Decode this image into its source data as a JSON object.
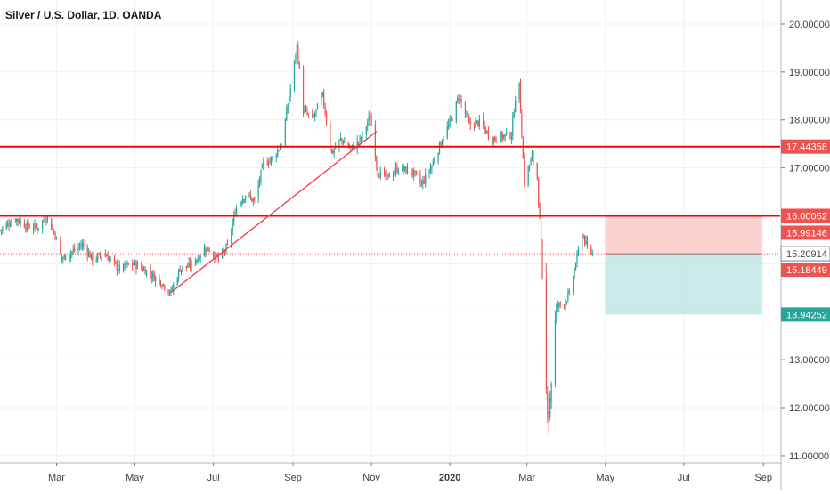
{
  "header": {
    "title": "Silver / U.S. Dollar, 1D, OANDA"
  },
  "colors": {
    "up": "#26a69a",
    "down": "#ef5350",
    "level_line": "#ff0000",
    "trendline": "#f23645",
    "grid": "#eef1f5",
    "axis_text": "#3b3f47",
    "stop_zone": "#f8c9c7",
    "target_zone": "#bfe6e3",
    "label_red": "#ef5350",
    "label_green": "#26a69a",
    "label_current": "#434651"
  },
  "chart_data": {
    "type": "candlestick",
    "title": "Silver / U.S. Dollar, 1D, OANDA",
    "xlabel": "",
    "ylabel": "",
    "x_range": [
      "2019-01-16",
      "2020-09-14"
    ],
    "ylim": [
      10.85,
      20.5
    ],
    "grid": true,
    "x_ticks": [
      {
        "date": "2019-03-01",
        "label": "Mar",
        "bold": false
      },
      {
        "date": "2019-05-01",
        "label": "May",
        "bold": false
      },
      {
        "date": "2019-07-01",
        "label": "Jul",
        "bold": false
      },
      {
        "date": "2019-09-01",
        "label": "Sep",
        "bold": false
      },
      {
        "date": "2019-11-01",
        "label": "Nov",
        "bold": false
      },
      {
        "date": "2020-01-01",
        "label": "2020",
        "bold": true
      },
      {
        "date": "2020-03-01",
        "label": "Mar",
        "bold": false
      },
      {
        "date": "2020-05-01",
        "label": "May",
        "bold": false
      },
      {
        "date": "2020-07-01",
        "label": "Jul",
        "bold": false
      },
      {
        "date": "2020-09-01",
        "label": "Sep",
        "bold": false
      }
    ],
    "y_ticks": [
      {
        "value": 20,
        "label": "20.00000"
      },
      {
        "value": 19,
        "label": "19.00000"
      },
      {
        "value": 18,
        "label": "18.00000"
      },
      {
        "value": 17,
        "label": "17.00000"
      },
      {
        "value": 13,
        "label": "13.00000"
      },
      {
        "value": 12,
        "label": "12.00000"
      },
      {
        "value": 11,
        "label": "11.00000"
      }
    ],
    "close_path": [
      [
        "2019-01-16",
        15.7
      ],
      [
        "2019-01-28",
        15.95
      ],
      [
        "2019-02-05",
        15.8
      ],
      [
        "2019-02-14",
        15.75
      ],
      [
        "2019-02-21",
        16.0
      ],
      [
        "2019-02-28",
        15.6
      ],
      [
        "2019-03-05",
        15.1
      ],
      [
        "2019-03-13",
        15.25
      ],
      [
        "2019-03-21",
        15.4
      ],
      [
        "2019-03-29",
        15.1
      ],
      [
        "2019-04-08",
        15.2
      ],
      [
        "2019-04-18",
        14.9
      ],
      [
        "2019-04-30",
        15.0
      ],
      [
        "2019-05-10",
        14.85
      ],
      [
        "2019-05-22",
        14.6
      ],
      [
        "2019-05-29",
        14.4
      ],
      [
        "2019-06-05",
        14.9
      ],
      [
        "2019-06-13",
        14.95
      ],
      [
        "2019-06-24",
        15.3
      ],
      [
        "2019-06-28",
        15.3
      ],
      [
        "2019-07-05",
        15.1
      ],
      [
        "2019-07-12",
        15.35
      ],
      [
        "2019-07-19",
        16.2
      ],
      [
        "2019-07-26",
        16.45
      ],
      [
        "2019-08-02",
        16.3
      ],
      [
        "2019-08-09",
        17.1
      ],
      [
        "2019-08-16",
        17.2
      ],
      [
        "2019-08-23",
        17.5
      ],
      [
        "2019-08-28",
        18.3
      ],
      [
        "2019-09-04",
        19.55
      ],
      [
        "2019-09-09",
        18.2
      ],
      [
        "2019-09-16",
        18.0
      ],
      [
        "2019-09-24",
        18.5
      ],
      [
        "2019-10-01",
        17.3
      ],
      [
        "2019-10-08",
        17.6
      ],
      [
        "2019-10-16",
        17.4
      ],
      [
        "2019-10-24",
        17.6
      ],
      [
        "2019-10-31",
        18.1
      ],
      [
        "2019-11-06",
        16.9
      ],
      [
        "2019-11-13",
        16.8
      ],
      [
        "2019-11-22",
        17.0
      ],
      [
        "2019-12-03",
        16.9
      ],
      [
        "2019-12-10",
        16.65
      ],
      [
        "2019-12-18",
        17.05
      ],
      [
        "2019-12-26",
        17.6
      ],
      [
        "2020-01-03",
        18.05
      ],
      [
        "2020-01-08",
        18.5
      ],
      [
        "2020-01-16",
        17.9
      ],
      [
        "2020-01-24",
        17.95
      ],
      [
        "2020-02-03",
        17.6
      ],
      [
        "2020-02-10",
        17.65
      ],
      [
        "2020-02-18",
        17.7
      ],
      [
        "2020-02-21",
        18.5
      ],
      [
        "2020-02-24",
        18.7
      ],
      [
        "2020-02-28",
        16.7
      ],
      [
        "2020-03-05",
        17.25
      ],
      [
        "2020-03-09",
        16.8
      ],
      [
        "2020-03-12",
        15.4
      ],
      [
        "2020-03-16",
        12.3
      ],
      [
        "2020-03-18",
        11.9
      ],
      [
        "2020-03-20",
        12.6
      ],
      [
        "2020-03-24",
        14.1
      ],
      [
        "2020-03-30",
        14.2
      ],
      [
        "2020-04-03",
        14.35
      ],
      [
        "2020-04-08",
        15.0
      ],
      [
        "2020-04-13",
        15.65
      ],
      [
        "2020-04-17",
        15.3
      ],
      [
        "2020-04-21",
        15.21
      ]
    ],
    "horizontal_levels": [
      16.00052,
      17.44358
    ],
    "current_price": 15.20914,
    "price_labels": [
      {
        "label": "17.44358",
        "kind": "red"
      },
      {
        "label": "16.00052",
        "kind": "red"
      },
      {
        "label": "15.99146",
        "kind": "red"
      },
      {
        "label": "15.20914",
        "kind": "current"
      },
      {
        "label": "15.18449",
        "kind": "red"
      },
      {
        "label": "13.94252",
        "kind": "green"
      }
    ],
    "trendline": {
      "from": [
        "2019-05-29",
        14.4
      ],
      "to": [
        "2019-11-05",
        17.76
      ]
    },
    "position": {
      "start": "2020-05-01",
      "end": "2020-08-31",
      "entry": 15.20914,
      "stop": 15.99146,
      "target": 13.94252
    }
  }
}
